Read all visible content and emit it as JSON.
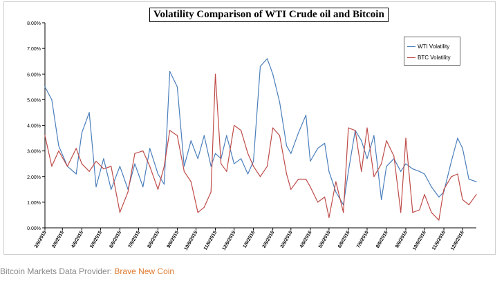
{
  "footer": {
    "label": "Bitcoin Markets Data Provider:",
    "link_text": "Brave New Coin"
  },
  "colors": {
    "wti": "#4a7ebb",
    "btc": "#be4b48",
    "link": "#e07a2e"
  },
  "chart_data": {
    "type": "line",
    "title": "Volatility Comparison of WTI Crude oil and Bitcoin",
    "xlabel": "",
    "ylabel": "",
    "x_tick_labels": [
      "2/9/2015",
      "3/9/2015",
      "4/9/2015",
      "5/9/2015",
      "6/9/2015",
      "7/9/2015",
      "8/9/2015",
      "9/9/2015",
      "10/9/2015",
      "11/9/2015",
      "12/9/2015",
      "1/9/2016",
      "2/9/2016",
      "3/9/2016",
      "4/9/2016",
      "5/9/2016",
      "6/9/2016",
      "7/9/2016",
      "8/9/2016",
      "9/9/2016",
      "10/9/2016",
      "11/9/2016",
      "12/9/2016"
    ],
    "y_tick_labels": [
      "0.00%",
      "1.00%",
      "2.00%",
      "3.00%",
      "4.00%",
      "5.00%",
      "6.00%",
      "7.00%",
      "8.00%"
    ],
    "ylim": [
      0,
      0.08
    ],
    "legend_position": "top-right",
    "grid": false,
    "x": [
      "2/9/2015",
      "2/20/2015",
      "3/3/2015",
      "3/17/2015",
      "3/31/2015",
      "4/9/2015",
      "4/21/2015",
      "5/2/2015",
      "5/14/2015",
      "5/26/2015",
      "6/9/2015",
      "6/22/2015",
      "7/3/2015",
      "7/16/2015",
      "7/27/2015",
      "8/9/2015",
      "8/19/2015",
      "8/28/2015",
      "9/9/2015",
      "9/20/2015",
      "10/1/2015",
      "10/12/2015",
      "10/22/2015",
      "11/2/2015",
      "11/9/2015",
      "11/18/2015",
      "11/27/2015",
      "12/9/2015",
      "12/20/2015",
      "12/31/2015",
      "1/9/2016",
      "1/20/2016",
      "1/31/2016",
      "2/9/2016",
      "2/20/2016",
      "3/2/2016",
      "3/9/2016",
      "3/21/2016",
      "4/2/2016",
      "4/9/2016",
      "4/21/2016",
      "5/2/2016",
      "5/9/2016",
      "5/20/2016",
      "6/1/2016",
      "6/9/2016",
      "6/20/2016",
      "6/30/2016",
      "7/9/2016",
      "7/20/2016",
      "8/1/2016",
      "8/9/2016",
      "8/21/2016",
      "9/1/2016",
      "9/9/2016",
      "9/20/2016",
      "10/1/2016",
      "10/9/2016",
      "10/20/2016",
      "11/1/2016",
      "11/9/2016",
      "11/21/2016",
      "12/1/2016",
      "12/9/2016",
      "12/19/2016",
      "12/31/2016"
    ],
    "series": [
      {
        "name": "WTI Volatility",
        "color": "#4a7ebb",
        "values": [
          0.055,
          0.05,
          0.032,
          0.024,
          0.021,
          0.037,
          0.045,
          0.016,
          0.027,
          0.015,
          0.024,
          0.015,
          0.025,
          0.016,
          0.031,
          0.021,
          0.017,
          0.061,
          0.055,
          0.024,
          0.034,
          0.027,
          0.036,
          0.024,
          0.029,
          0.027,
          0.036,
          0.025,
          0.027,
          0.021,
          0.026,
          0.063,
          0.066,
          0.06,
          0.049,
          0.032,
          0.029,
          0.037,
          0.044,
          0.026,
          0.031,
          0.033,
          0.022,
          0.014,
          0.009,
          0.022,
          0.038,
          0.034,
          0.027,
          0.036,
          0.011,
          0.024,
          0.027,
          0.022,
          0.025,
          0.023,
          0.022,
          0.021,
          0.016,
          0.012,
          0.014,
          0.026,
          0.035,
          0.031,
          0.019,
          0.018
        ]
      },
      {
        "name": "BTC Volatility",
        "color": "#be4b48",
        "values": [
          0.036,
          0.024,
          0.03,
          0.024,
          0.031,
          0.025,
          0.022,
          0.026,
          0.023,
          0.024,
          0.006,
          0.014,
          0.029,
          0.03,
          0.024,
          0.015,
          0.024,
          0.038,
          0.036,
          0.022,
          0.018,
          0.006,
          0.008,
          0.014,
          0.06,
          0.025,
          0.022,
          0.04,
          0.038,
          0.029,
          0.024,
          0.02,
          0.024,
          0.039,
          0.036,
          0.021,
          0.015,
          0.019,
          0.019,
          0.016,
          0.01,
          0.012,
          0.004,
          0.018,
          0.006,
          0.039,
          0.038,
          0.022,
          0.039,
          0.02,
          0.025,
          0.034,
          0.028,
          0.006,
          0.035,
          0.006,
          0.007,
          0.013,
          0.006,
          0.003,
          0.015,
          0.02,
          0.021,
          0.011,
          0.009,
          0.013
        ]
      }
    ]
  }
}
